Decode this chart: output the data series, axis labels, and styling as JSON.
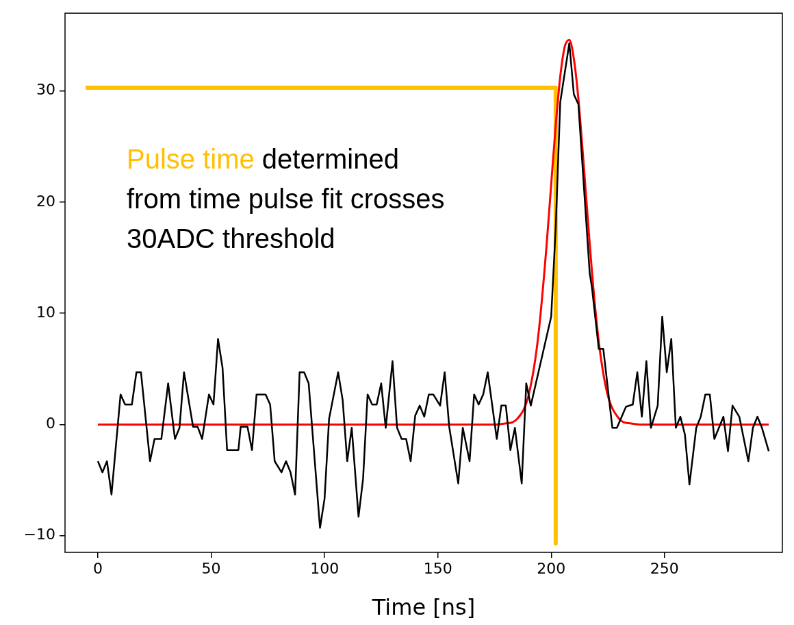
{
  "chart_data": {
    "type": "line",
    "xlabel": "Time [ns]",
    "xlim": [
      -14.5,
      302
    ],
    "xticks": [
      0,
      50,
      100,
      150,
      200,
      250
    ],
    "ylim": [
      -11.5,
      37
    ],
    "yticks": [
      {
        "value": -10,
        "label": "−10"
      },
      0,
      10,
      20,
      30
    ],
    "grid": false,
    "legend": false,
    "marker": "none",
    "line_style": "solid",
    "series": [
      {
        "color": "#000000",
        "x": [
          0,
          2,
          4,
          6,
          10,
          12,
          15,
          17,
          19,
          23,
          25,
          28,
          31,
          34,
          36,
          38,
          42,
          44,
          46,
          49,
          51,
          53,
          55,
          57,
          62,
          63,
          66,
          68,
          70,
          74,
          76,
          78,
          81,
          83,
          85,
          87,
          89,
          91,
          93,
          98,
          100,
          102,
          106,
          108,
          110,
          112,
          115,
          117,
          119,
          121,
          123,
          125,
          127,
          130,
          132,
          134,
          136,
          138,
          140,
          142,
          144,
          146,
          148,
          151,
          153,
          155,
          159,
          161,
          164,
          166,
          168,
          170,
          172,
          176,
          178,
          180,
          182,
          184,
          187,
          189,
          191,
          200,
          202,
          204,
          208,
          210,
          212,
          217,
          218,
          221,
          223,
          227,
          229,
          233,
          236,
          238,
          240,
          242,
          244,
          247,
          249,
          251,
          253,
          255,
          257,
          259,
          261,
          264,
          266,
          268,
          270,
          272,
          274,
          276,
          278,
          280,
          283,
          287,
          289,
          291,
          293,
          296
        ],
        "values": [
          -3.3,
          -4.3,
          -3.3,
          -6.3,
          2.7,
          1.8,
          1.8,
          4.7,
          4.7,
          -3.3,
          -1.3,
          -1.3,
          3.7,
          -1.3,
          -0.3,
          4.7,
          -0.2,
          -0.2,
          -1.3,
          2.7,
          1.8,
          7.7,
          5.1,
          -2.3,
          -2.3,
          -0.2,
          -0.2,
          -2.3,
          2.7,
          2.7,
          1.8,
          -3.3,
          -4.3,
          -3.3,
          -4.3,
          -6.3,
          4.7,
          4.7,
          3.7,
          -9.3,
          -6.7,
          0.5,
          4.7,
          2.2,
          -3.3,
          -0.3,
          -8.3,
          -4.9,
          2.7,
          1.8,
          1.8,
          3.7,
          -0.3,
          5.7,
          -0.3,
          -1.3,
          -1.3,
          -3.3,
          0.8,
          1.7,
          0.7,
          2.7,
          2.7,
          1.7,
          4.7,
          -0.2,
          -5.3,
          -0.3,
          -3.3,
          2.7,
          1.8,
          2.7,
          4.7,
          -1.3,
          1.7,
          1.7,
          -2.3,
          -0.3,
          -5.3,
          3.7,
          1.7,
          9.7,
          17.7,
          29.0,
          34.3,
          29.7,
          28.8,
          13.6,
          12.3,
          6.8,
          6.8,
          -0.3,
          -0.3,
          1.6,
          1.8,
          4.7,
          0.7,
          5.7,
          -0.3,
          1.7,
          9.7,
          4.7,
          7.7,
          -0.3,
          0.7,
          -0.9,
          -5.4,
          -0.3,
          0.7,
          2.7,
          2.7,
          -1.3,
          -0.3,
          0.7,
          -2.4,
          1.7,
          0.7,
          -3.3,
          -0.3,
          0.7,
          -0.3,
          -2.4
        ]
      },
      {
        "color": "#ff0000",
        "x": [
          0,
          170,
          175,
          180,
          183,
          185,
          188,
          190,
          193,
          195,
          198,
          200,
          202,
          204,
          206,
          208,
          210,
          212,
          214,
          216,
          218,
          220,
          222,
          225,
          230,
          232,
          235,
          240,
          296
        ],
        "values": [
          0,
          0,
          0,
          0.1,
          0.2,
          0.5,
          1.4,
          2.6,
          5.9,
          9.3,
          16.2,
          21.6,
          26.9,
          31.3,
          34.0,
          34.6,
          32.9,
          29.3,
          24.3,
          18.9,
          13.7,
          9.3,
          5.9,
          2.6,
          0.5,
          0.2,
          0.1,
          0,
          0
        ]
      },
      {
        "color": "#ffc000",
        "x": [
          -5.4,
          202,
          202
        ],
        "values": [
          30.3,
          30.3,
          -10.7
        ]
      }
    ],
    "annotations": [
      "Pulse time",
      "determined\nfrom time pulse fit crosses\n30ADC threshold"
    ]
  }
}
